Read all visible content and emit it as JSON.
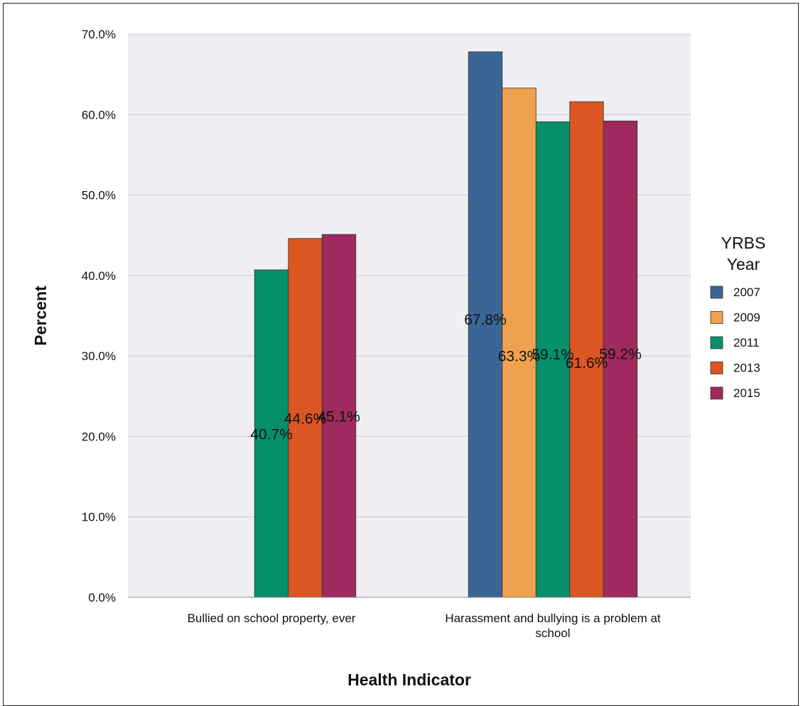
{
  "chart_data": {
    "type": "bar",
    "xlabel": "Health Indicator",
    "ylabel": "Percent",
    "ylim": [
      0,
      70
    ],
    "yticks": [
      "0.0%",
      "10.0%",
      "20.0%",
      "30.0%",
      "40.0%",
      "50.0%",
      "60.0%",
      "70.0%"
    ],
    "grid": true,
    "legend_position": "right",
    "legend_title": [
      "YRBS",
      "Year"
    ],
    "categories": [
      [
        "Bullied on school property, ever"
      ],
      [
        "Harassment and bullying is a problem at",
        "school"
      ]
    ],
    "series": [
      {
        "name": "2007",
        "color": "#3b6595",
        "values": [
          null,
          67.8
        ],
        "labels": [
          "",
          "67.8%"
        ]
      },
      {
        "name": "2009",
        "color": "#eea24f",
        "values": [
          null,
          63.3
        ],
        "labels": [
          "",
          "63.3%"
        ]
      },
      {
        "name": "2011",
        "color": "#078f6c",
        "values": [
          40.7,
          59.1
        ],
        "labels": [
          "40.7%",
          "59.1%"
        ]
      },
      {
        "name": "2013",
        "color": "#db5622",
        "values": [
          44.6,
          61.6
        ],
        "labels": [
          "44.6%",
          "61.6%"
        ]
      },
      {
        "name": "2015",
        "color": "#9f2a5f",
        "values": [
          45.1,
          59.2
        ],
        "labels": [
          "45.1%",
          "59.2%"
        ]
      }
    ],
    "plot_background": "#eeeef3"
  }
}
